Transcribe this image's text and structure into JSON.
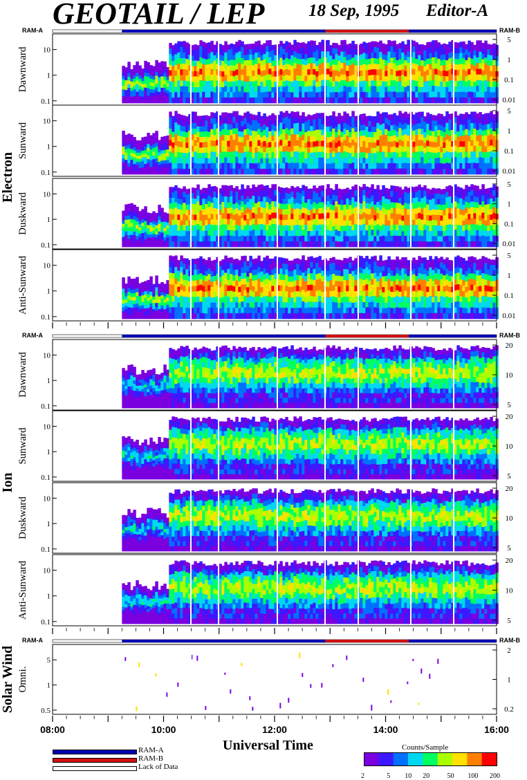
{
  "header": {
    "title": "GEOTAIL / LEP",
    "date": "18 Sep, 1995",
    "editor": "Editor-A"
  },
  "colors": {
    "ram_a": "#0000b4",
    "ram_b": "#d01010",
    "lack": "#ffffff",
    "colorbar": [
      "#7a00e0",
      "#3c18ff",
      "#0070ff",
      "#00d8f0",
      "#00ff60",
      "#a8ff00",
      "#ffe000",
      "#ff8000",
      "#ff0000"
    ]
  },
  "ram_labels": {
    "a": "RAM-A",
    "b": "RAM-B"
  },
  "groups": [
    {
      "name": "Electron"
    },
    {
      "name": "Ion"
    },
    {
      "name": "Solar Wind"
    }
  ],
  "panels": [
    {
      "label": "Dawnward",
      "left_ticks": [
        "10",
        "1",
        "0.1"
      ],
      "right_ticks": [
        "5",
        "1",
        "0.1",
        "0.01"
      ],
      "kind": "electron"
    },
    {
      "label": "Sunward",
      "left_ticks": [
        "10",
        "1",
        "0.1"
      ],
      "right_ticks": [
        "5",
        "1",
        "0.1",
        "0.01"
      ],
      "kind": "electron"
    },
    {
      "label": "Duskward",
      "left_ticks": [
        "10",
        "1",
        "0.1"
      ],
      "right_ticks": [
        "5",
        "1",
        "0.1",
        "0.01"
      ],
      "kind": "electron"
    },
    {
      "label": "Anti-Sunward",
      "left_ticks": [
        "10",
        "1",
        "0.1"
      ],
      "right_ticks": [
        "5",
        "1",
        "0.1",
        "0.01"
      ],
      "kind": "electron"
    },
    {
      "label": "Dawnward",
      "left_ticks": [
        "10",
        "1",
        "0.1"
      ],
      "right_ticks": [
        "20",
        "10",
        "5"
      ],
      "kind": "ion"
    },
    {
      "label": "Sunward",
      "left_ticks": [
        "10",
        "1",
        "0.1"
      ],
      "right_ticks": [
        "20",
        "10",
        "5"
      ],
      "kind": "ion"
    },
    {
      "label": "Duskward",
      "left_ticks": [
        "10",
        "1",
        "0.1"
      ],
      "right_ticks": [
        "20",
        "10",
        "5"
      ],
      "kind": "ion"
    },
    {
      "label": "Anti-Sunward",
      "left_ticks": [
        "10",
        "1",
        "0.1"
      ],
      "right_ticks": [
        "20",
        "10",
        "5"
      ],
      "kind": "ion"
    },
    {
      "label": "Omni.",
      "left_ticks": [
        "5",
        "1",
        "0.5"
      ],
      "right_ticks": [
        "2",
        "1",
        "0.2"
      ],
      "kind": "solarwind"
    }
  ],
  "chart_data": {
    "type": "heatmap",
    "xlabel": "Universal Time",
    "x_tick_labels": [
      "08:00",
      "10:00",
      "12:00",
      "14:00",
      "16:00"
    ],
    "xlim": [
      "08:00",
      "16:00"
    ],
    "ram_segments": [
      {
        "mode": "lack",
        "start": "08:00",
        "end": "09:15"
      },
      {
        "mode": "RAM-A",
        "start": "09:15",
        "end": "12:55"
      },
      {
        "mode": "RAM-B",
        "start": "12:55",
        "end": "14:25"
      },
      {
        "mode": "RAM-A",
        "start": "14:25",
        "end": "16:00"
      }
    ],
    "data_start": "09:15",
    "colorbar": {
      "title": "Counts/Sample",
      "ticks": [
        "2",
        "5",
        "10",
        "20",
        "50",
        "100",
        "200"
      ]
    }
  },
  "legend": [
    {
      "label": "RAM-A",
      "mode": "a"
    },
    {
      "label": "RAM-B",
      "mode": "b"
    },
    {
      "label": "Lack of Data",
      "mode": "lack"
    }
  ]
}
